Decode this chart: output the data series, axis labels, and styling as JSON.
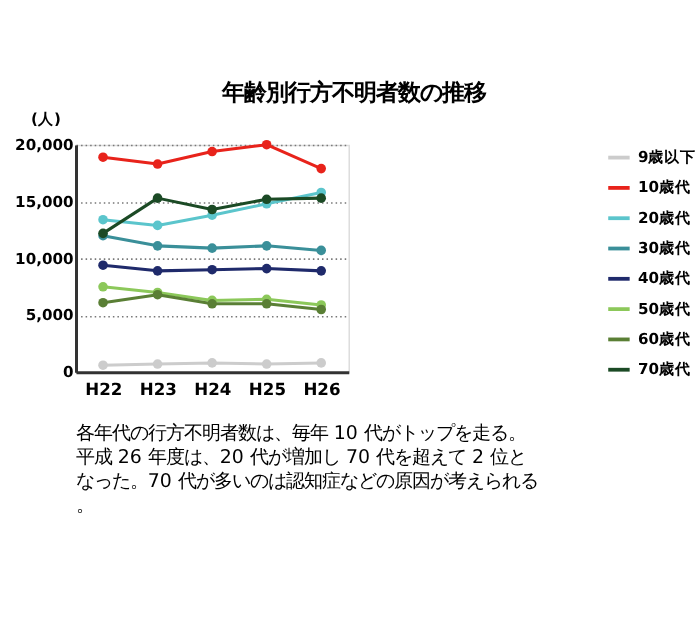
{
  "chart_data": {
    "type": "line",
    "title": "年齢別行方不明者数の推移",
    "ylabel": "(人)",
    "categories": [
      "H22",
      "H23",
      "H24",
      "H25",
      "H26"
    ],
    "series": [
      {
        "name": "9歳以下",
        "color": "#cccccc",
        "values": [
          600,
          700,
          800,
          700,
          800
        ]
      },
      {
        "name": "10歳代",
        "color": "#e8231b",
        "values": [
          18900,
          18300,
          19400,
          20000,
          17900
        ]
      },
      {
        "name": "20歳代",
        "color": "#5bc5cc",
        "values": [
          13400,
          12900,
          13800,
          14800,
          15800
        ]
      },
      {
        "name": "30歳代",
        "color": "#3a8f99",
        "values": [
          12000,
          11100,
          10900,
          11100,
          10700
        ]
      },
      {
        "name": "40歳代",
        "color": "#1f2a6b",
        "values": [
          9400,
          8900,
          9000,
          9100,
          8900
        ]
      },
      {
        "name": "50歳代",
        "color": "#8cc85a",
        "values": [
          7500,
          7000,
          6300,
          6400,
          5900
        ]
      },
      {
        "name": "60歳代",
        "color": "#5a7f35",
        "values": [
          6100,
          6800,
          6000,
          6000,
          5500
        ]
      },
      {
        "name": "70歳代",
        "color": "#1b4a25",
        "values": [
          12200,
          15300,
          14300,
          15200,
          15300
        ]
      }
    ],
    "ylim": [
      0,
      20000
    ],
    "yticks": [
      0,
      {
        "value": 5000,
        "label": "5,000"
      },
      {
        "value": 10000,
        "label": "10,000"
      },
      {
        "value": 15000,
        "label": "15,000"
      },
      {
        "value": 20000,
        "label": "20,000"
      }
    ],
    "grid": "y",
    "legend": "right",
    "marker": "circle",
    "annotations": [
      "各年代の行方不明者数は、毎年 10 代がトップを走る。平成 26 年度は、20 代が増加し 70 代を超えて 2 位となった。70 代が多いのは認知症などの原因が考えられる。"
    ]
  }
}
